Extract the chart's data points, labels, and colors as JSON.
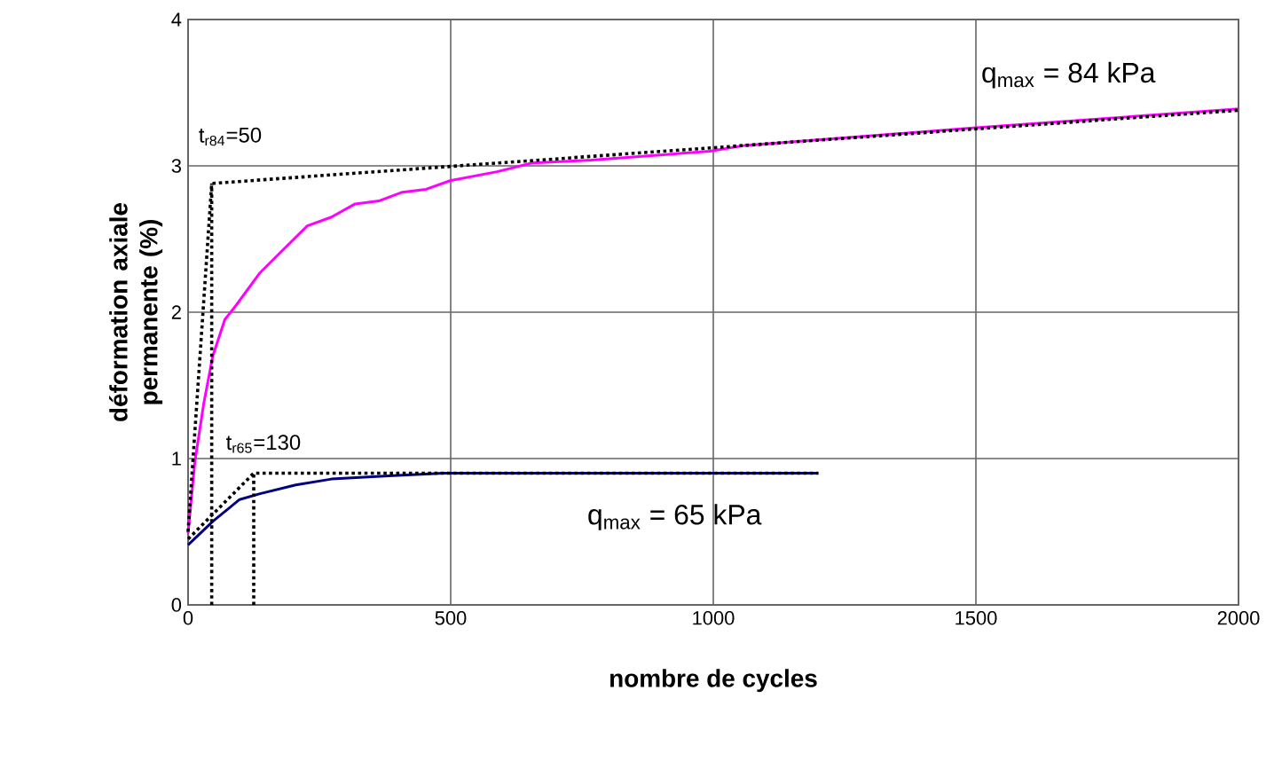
{
  "chart_data": {
    "type": "line",
    "xlabel": "nombre de cycles",
    "ylabel": "déformation axiale permanente (%)",
    "xlim": [
      0,
      2000
    ],
    "ylim": [
      0,
      4
    ],
    "xticks": [
      0,
      500,
      1000,
      1500,
      2000
    ],
    "yticks": [
      0,
      1,
      2,
      3,
      4
    ],
    "grid": true,
    "marker": "none",
    "series": [
      {
        "color": "#ff00ff",
        "line_style": "solid",
        "x": [
          0,
          13,
          30,
          47,
          70,
          92,
          137,
          182,
          227,
          273,
          318,
          363,
          408,
          453,
          500,
          588,
          655,
          768,
          993,
          1061,
          1500,
          2000
        ],
        "values": [
          0.49,
          0.98,
          1.38,
          1.7,
          1.95,
          2.05,
          2.27,
          2.43,
          2.59,
          2.65,
          2.74,
          2.76,
          2.82,
          2.84,
          2.9,
          2.96,
          3.02,
          3.04,
          3.1,
          3.14,
          3.26,
          3.39
        ]
      },
      {
        "color": "#000080",
        "line_style": "solid",
        "x": [
          0,
          47,
          98,
          137,
          205,
          273,
          374,
          486,
          1200
        ],
        "values": [
          0.41,
          0.57,
          0.72,
          0.76,
          0.82,
          0.86,
          0.88,
          0.9,
          0.9
        ]
      },
      {
        "color": "#000000",
        "line_style": "dotted",
        "x": [
          0,
          45,
          2000
        ],
        "values": [
          0.5,
          2.88,
          3.38
        ]
      },
      {
        "color": "#000000",
        "line_style": "dotted",
        "x": [
          45,
          45
        ],
        "values": [
          0,
          2.88
        ]
      },
      {
        "color": "#000000",
        "line_style": "dotted",
        "x": [
          0,
          125,
          1200
        ],
        "values": [
          0.45,
          0.9,
          0.9
        ]
      },
      {
        "color": "#000000",
        "line_style": "dotted",
        "x": [
          125,
          125
        ],
        "values": [
          0,
          0.9
        ]
      }
    ],
    "annotations": [
      "t$_{r84}$=50",
      "t$_{r65}$=130",
      "q$_{max}$ = 84 kPa",
      "q$_{max}$ = 65 kPa"
    ]
  }
}
